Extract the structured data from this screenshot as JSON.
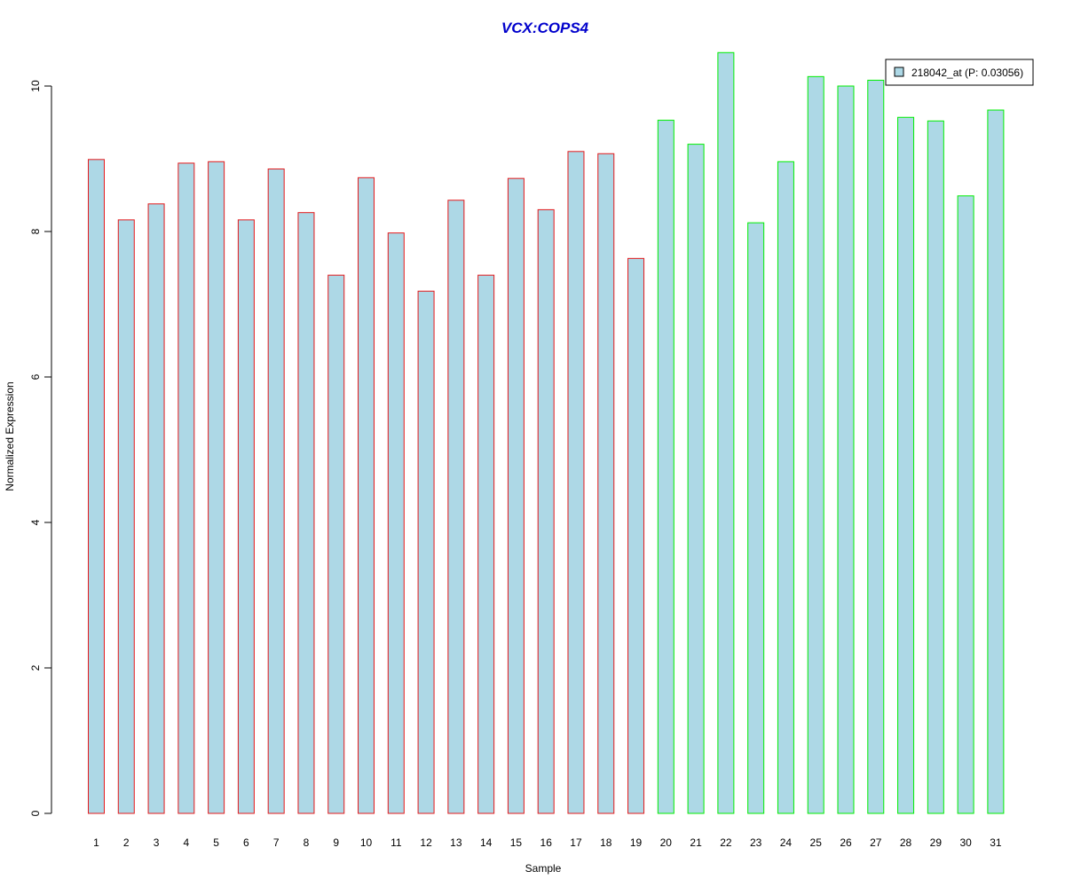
{
  "chart_data": {
    "type": "bar",
    "title": "VCX:COPS4",
    "xlabel": "Sample",
    "ylabel": "Normalized Expression",
    "categories": [
      "1",
      "2",
      "3",
      "4",
      "5",
      "6",
      "7",
      "8",
      "9",
      "10",
      "11",
      "12",
      "13",
      "14",
      "15",
      "16",
      "17",
      "18",
      "19",
      "20",
      "21",
      "22",
      "23",
      "24",
      "25",
      "26",
      "27",
      "28",
      "29",
      "30",
      "31"
    ],
    "series": [
      {
        "name": "218042_at (P: 0.03056)",
        "values": [
          8.99,
          8.16,
          8.38,
          8.94,
          8.96,
          8.16,
          8.86,
          8.26,
          7.4,
          8.74,
          7.98,
          7.18,
          8.43,
          7.4,
          8.73,
          8.3,
          9.1,
          9.07,
          7.63,
          9.53,
          9.2,
          10.46,
          8.12,
          8.96,
          10.13,
          10.0,
          10.08,
          9.57,
          9.52,
          8.49,
          9.67
        ]
      }
    ],
    "groups": [
      {
        "from": 1,
        "to": 19,
        "border_color": "#e41a1c"
      },
      {
        "from": 20,
        "to": 31,
        "border_color": "#00ee00"
      }
    ],
    "bar_fill": "#add8e6",
    "title_color": "#0000cc",
    "yticks": [
      0,
      2,
      4,
      6,
      8,
      10
    ],
    "ylim": [
      0,
      10.5
    ],
    "grid": false,
    "legend_position": "top-right"
  }
}
